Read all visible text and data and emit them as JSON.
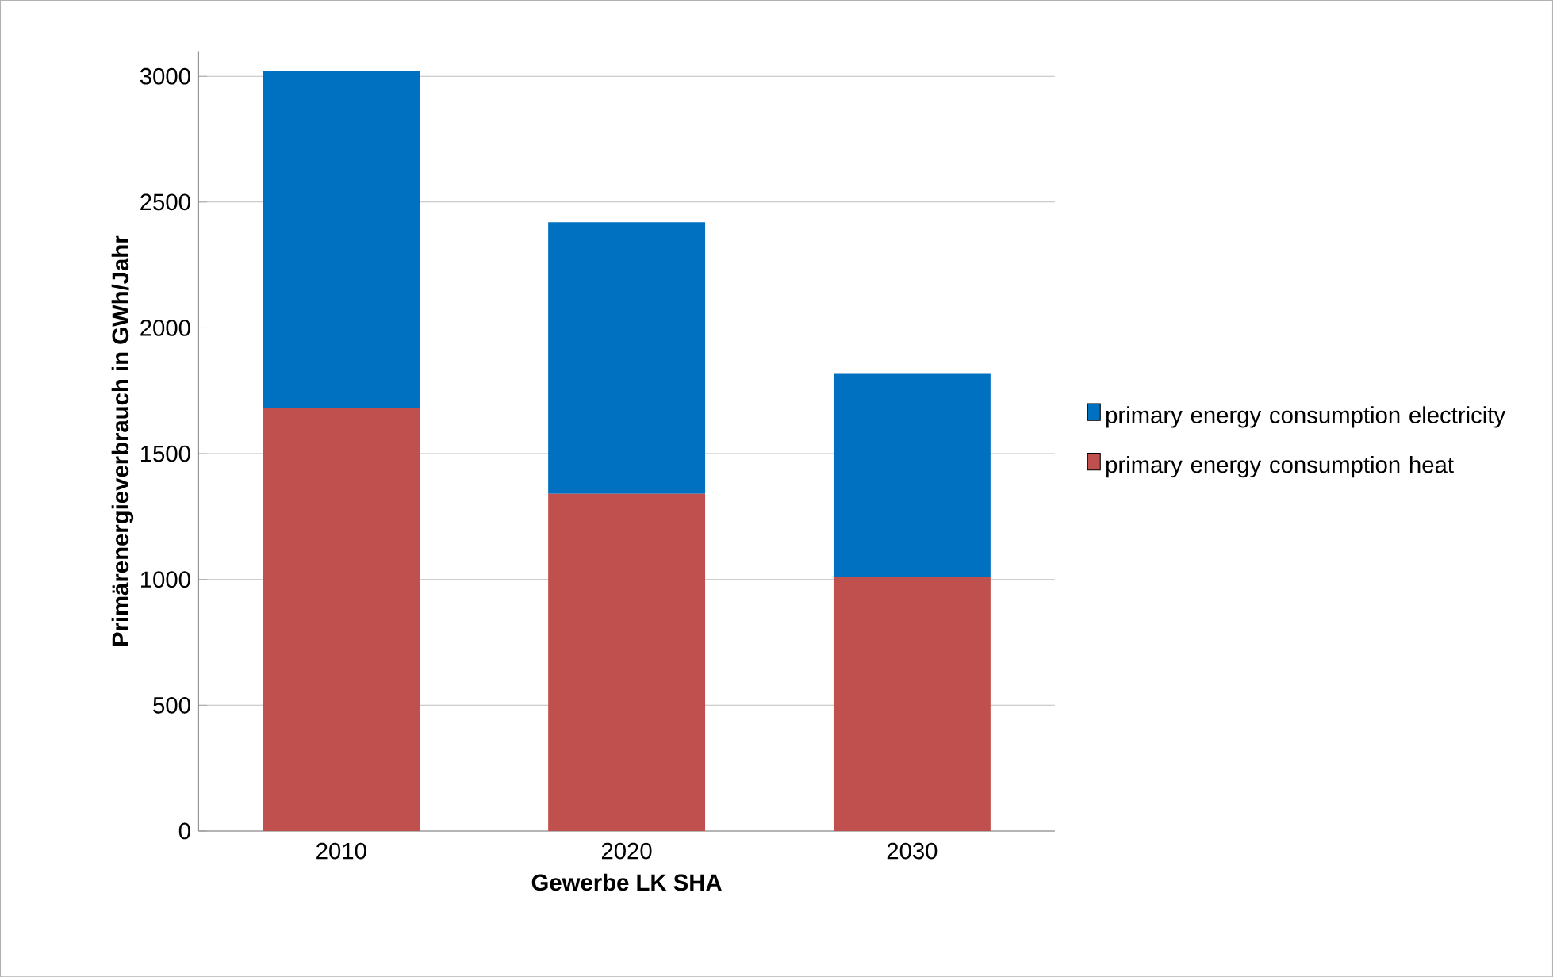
{
  "chart_data": {
    "type": "bar",
    "stacked": true,
    "categories": [
      "2010",
      "2020",
      "2030"
    ],
    "series": [
      {
        "name": "primary energy consumption heat",
        "color": "#c0504d",
        "values": [
          1680,
          1340,
          1010
        ]
      },
      {
        "name": "primary energy consumption electricity",
        "color": "#0070c0",
        "values": [
          1340,
          1080,
          810
        ]
      }
    ],
    "xlabel": "Gewerbe LK SHA",
    "ylabel": "Primärenergieverbrauch in GWh/Jahr",
    "ylim": [
      0,
      3100
    ],
    "yticks": [
      0,
      500,
      1000,
      1500,
      2000,
      2500,
      3000
    ],
    "grid": "y",
    "legend": "right"
  }
}
